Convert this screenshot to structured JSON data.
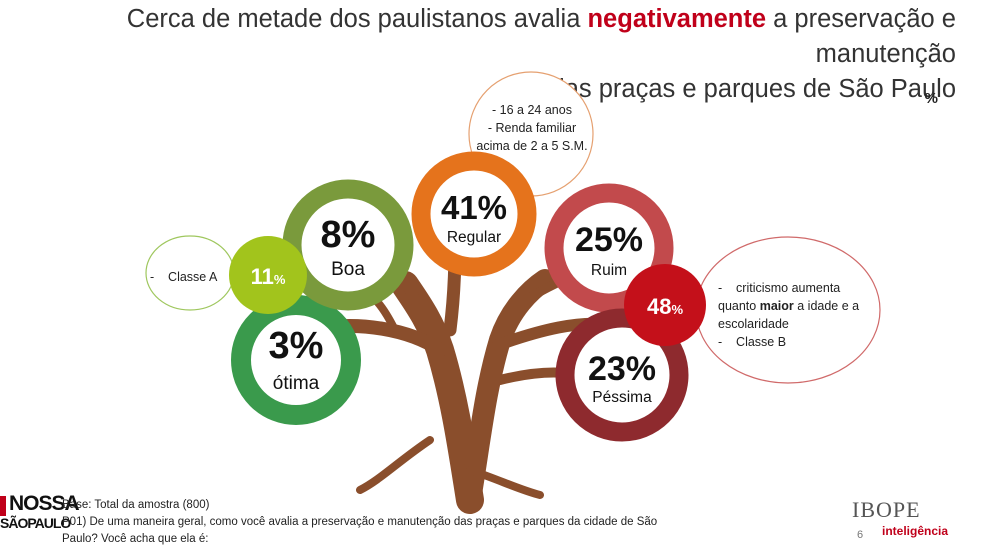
{
  "title": {
    "part1": "Cerca de metade dos paulistanos avalia ",
    "highlight": "negativamente",
    "part2": " a preservação e manutenção",
    "line2": "das praças e parques de São Paulo"
  },
  "unit_label": "%",
  "chart_data": {
    "type": "other",
    "unit": "%",
    "categories": [
      "ótima",
      "Boa",
      "Regular",
      "Ruim",
      "Péssima"
    ],
    "values": [
      3,
      8,
      41,
      25,
      23
    ],
    "display": [
      "3%",
      "8%",
      "41%",
      "25%",
      "23%"
    ],
    "subtotals": [
      {
        "value": 11,
        "display": "11",
        "unit": "%",
        "note_lines": [
          "-    Classe A"
        ]
      },
      {
        "value": 48,
        "display": "48",
        "unit": "%",
        "note_lines": [
          "-    criticismo aumenta",
          "quanto maior a idade e a",
          "escolaridade",
          "-    Classe B"
        ]
      }
    ],
    "regular_note_lines": [
      "- 16 a 24 anos",
      "- Renda familiar",
      "acima de 2 a 5 S.M."
    ],
    "colors": {
      "otima": "#3a9a4c",
      "boa": "#7a9a3c",
      "regular": "#e5731c",
      "ruim": "#c24a4c",
      "pessima": "#8e2a2e",
      "subtotal_good": "#a2c41c",
      "subtotal_bad": "#c4101a",
      "trunk": "#8a4e2c"
    }
  },
  "footer": {
    "base": "Base: Total da amostra (800)",
    "question_line1": "P01) De uma maneira geral, como você avalia a preservação e manutenção das praças e parques da cidade de São",
    "question_line2": "Paulo? Você acha que ela é:"
  },
  "logo_left": {
    "line1": "NOSSA",
    "line2": "SÃOPAULO"
  },
  "logo_right": {
    "name": "IBOPE",
    "sub": "inteligência"
  },
  "page_number": "6"
}
